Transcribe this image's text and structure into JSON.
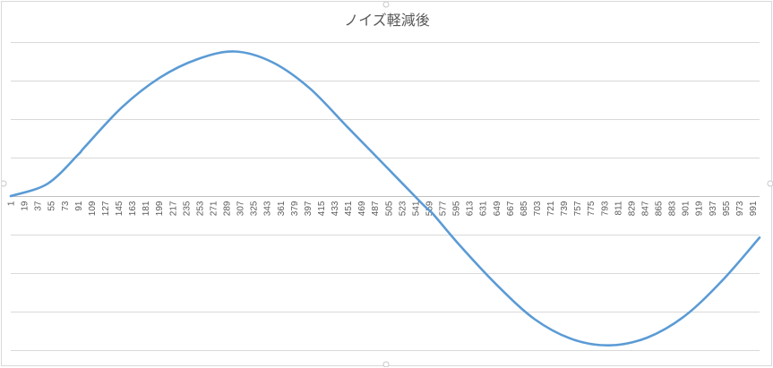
{
  "chart_data": {
    "type": "line",
    "title": "ノイズ軽減後",
    "xlabel": "",
    "ylabel": "",
    "x_start": 1,
    "x_end": 1000,
    "x_tick_step": 18,
    "ylim": [
      -1.1,
      1.1
    ],
    "y_gridlines": [
      -1,
      -0.75,
      -0.5,
      -0.25,
      0,
      0.25,
      0.5,
      0.75,
      1
    ],
    "y_tick_labels_visible": false,
    "grid": true,
    "legend": "none",
    "series": [
      {
        "name": "",
        "color": "#5b9bd5",
        "x": [
          1,
          50,
          91,
          100,
          150,
          200,
          250,
          300,
          350,
          400,
          450,
          500,
          550,
          565,
          600,
          650,
          700,
          750,
          800,
          850,
          900,
          950,
          1000
        ],
        "y": [
          0.0,
          0.08,
          0.27,
          0.32,
          0.58,
          0.77,
          0.89,
          0.94,
          0.87,
          0.7,
          0.45,
          0.2,
          -0.05,
          -0.12,
          -0.32,
          -0.58,
          -0.8,
          -0.93,
          -0.97,
          -0.92,
          -0.78,
          -0.55,
          -0.27
        ]
      }
    ]
  }
}
